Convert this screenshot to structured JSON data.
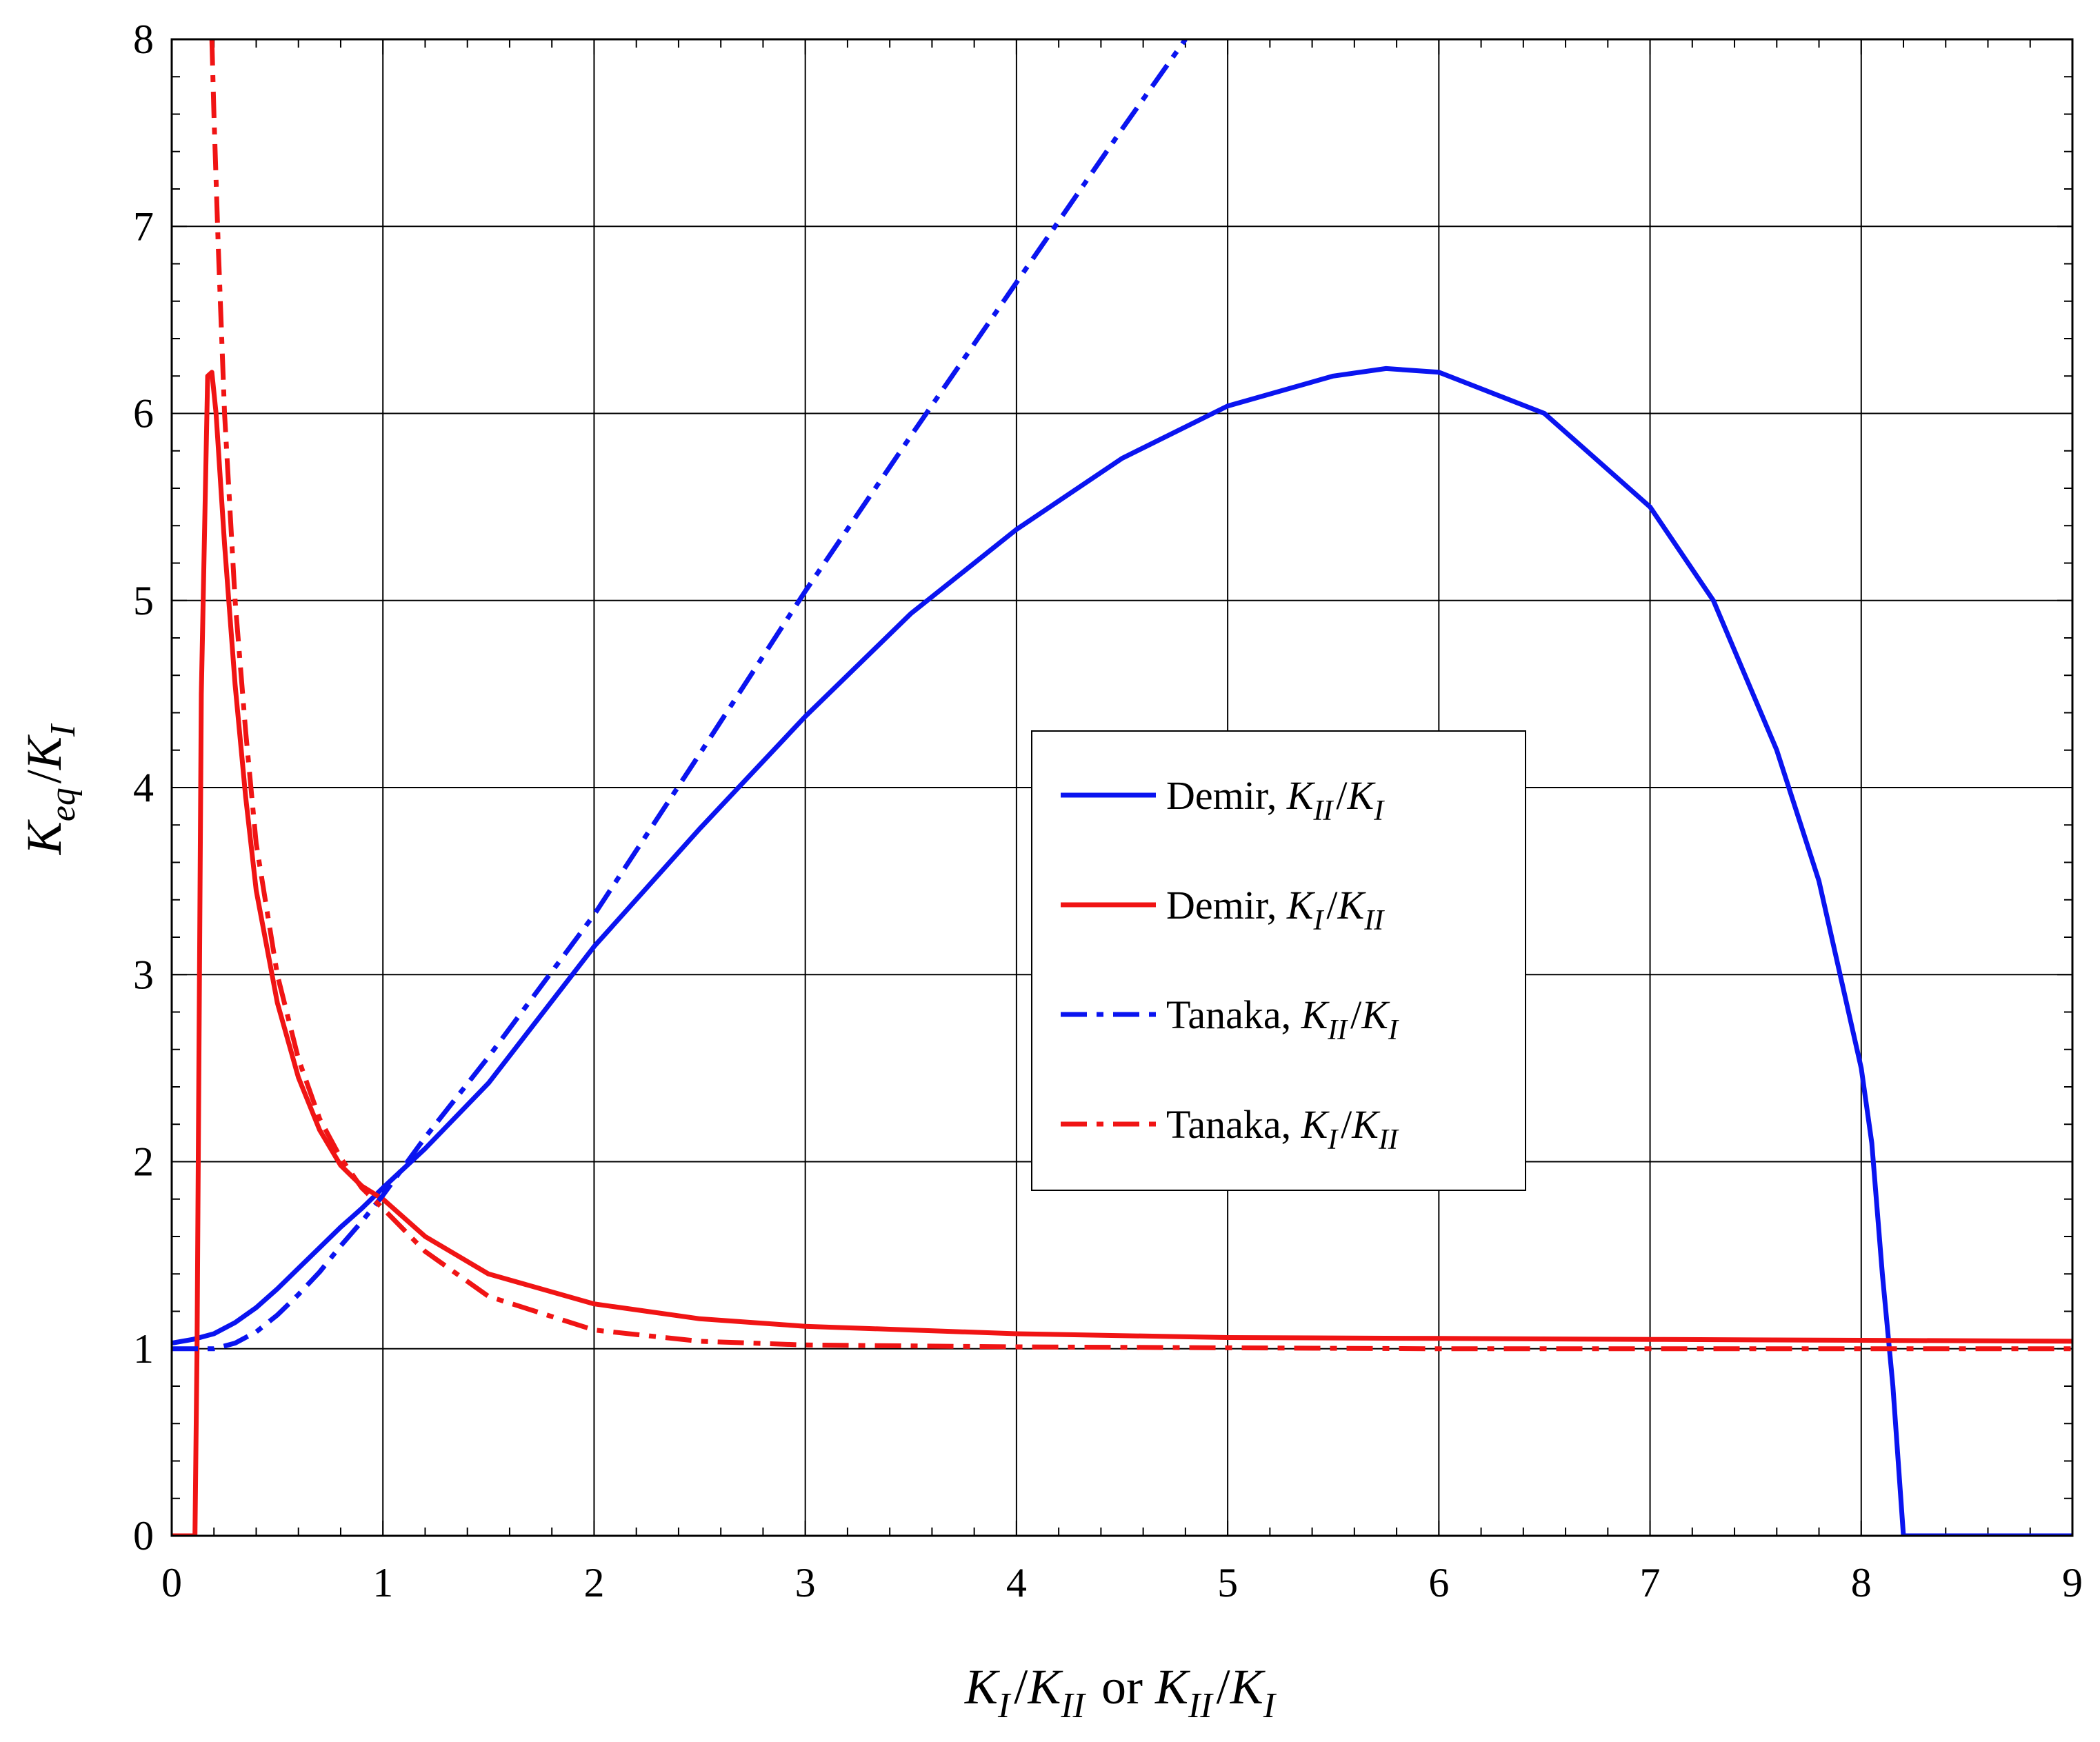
{
  "chart_data": {
    "type": "line",
    "title": "",
    "xlabel": {
      "parts": [
        {
          "base": "K",
          "sub": "I"
        },
        {
          "text": "/"
        },
        {
          "base": "K",
          "sub": "II"
        },
        {
          "text": " or "
        },
        {
          "base": "K",
          "sub": "II"
        },
        {
          "text": "/"
        },
        {
          "base": "K",
          "sub": "I"
        }
      ]
    },
    "ylabel": {
      "parts": [
        {
          "base": "K",
          "sub": "eq"
        },
        {
          "text": "/"
        },
        {
          "base": "K",
          "sub": "I"
        }
      ]
    },
    "xlim": [
      0,
      9
    ],
    "ylim": [
      0,
      8
    ],
    "xticks": [
      "0",
      "1",
      "2",
      "3",
      "4",
      "5",
      "6",
      "7",
      "8",
      "9"
    ],
    "yticks": [
      "0",
      "1",
      "2",
      "3",
      "4",
      "5",
      "6",
      "7",
      "8"
    ],
    "grid": true,
    "minor_ticks": true,
    "legend_position": "center-right",
    "series": [
      {
        "name": {
          "prefix": "Demir, ",
          "parts": [
            {
              "base": "K",
              "sub": "II"
            },
            {
              "text": "/"
            },
            {
              "base": "K",
              "sub": "I"
            }
          ]
        },
        "color": "#0a14f0",
        "style": "solid",
        "x": [
          0,
          0.1,
          0.2,
          0.3,
          0.4,
          0.5,
          0.6,
          0.7,
          0.8,
          0.9,
          1.0,
          1.2,
          1.5,
          2.0,
          2.5,
          3.0,
          3.5,
          4.0,
          4.5,
          5.0,
          5.5,
          5.75,
          6.0,
          6.5,
          7.0,
          7.3,
          7.6,
          7.8,
          8.0,
          8.05,
          8.1,
          8.15,
          8.2,
          8.3,
          9.0
        ],
        "y": [
          1.03,
          1.05,
          1.08,
          1.14,
          1.22,
          1.32,
          1.43,
          1.54,
          1.65,
          1.75,
          1.86,
          2.07,
          2.42,
          3.15,
          3.78,
          4.38,
          4.93,
          5.38,
          5.76,
          6.04,
          6.2,
          6.24,
          6.22,
          6.0,
          5.5,
          5.0,
          4.2,
          3.5,
          2.5,
          2.1,
          1.4,
          0.8,
          0,
          0,
          0
        ]
      },
      {
        "name": {
          "prefix": "Demir, ",
          "parts": [
            {
              "base": "K",
              "sub": "I"
            },
            {
              "text": "/"
            },
            {
              "base": "K",
              "sub": "II"
            }
          ]
        },
        "color": "#f01414",
        "style": "solid",
        "x": [
          0,
          0.11,
          0.12,
          0.14,
          0.17,
          0.19,
          0.21,
          0.25,
          0.3,
          0.35,
          0.4,
          0.5,
          0.6,
          0.7,
          0.8,
          0.9,
          1.0,
          1.2,
          1.5,
          2.0,
          2.5,
          3.0,
          4.0,
          5.0,
          6.0,
          7.0,
          8.0,
          9.0
        ],
        "y": [
          0,
          0,
          1.0,
          4.5,
          6.2,
          6.22,
          6.0,
          5.3,
          4.55,
          3.95,
          3.45,
          2.85,
          2.45,
          2.17,
          1.98,
          1.87,
          1.8,
          1.6,
          1.4,
          1.24,
          1.16,
          1.12,
          1.08,
          1.06,
          1.055,
          1.05,
          1.045,
          1.04
        ]
      },
      {
        "name": {
          "prefix": "Tanaka, ",
          "parts": [
            {
              "base": "K",
              "sub": "II"
            },
            {
              "text": "/"
            },
            {
              "base": "K",
              "sub": "I"
            }
          ]
        },
        "color": "#0a14f0",
        "style": "dashdot",
        "x": [
          0,
          0.1,
          0.2,
          0.3,
          0.4,
          0.5,
          0.6,
          0.7,
          0.8,
          0.9,
          1.0,
          1.2,
          1.5,
          2.0,
          2.5,
          3.0,
          3.5,
          4.0,
          4.5,
          4.8
        ],
        "y": [
          1.0,
          1.0,
          1.0,
          1.03,
          1.09,
          1.18,
          1.29,
          1.41,
          1.55,
          1.68,
          1.82,
          2.13,
          2.56,
          3.32,
          4.18,
          5.05,
          5.88,
          6.7,
          7.52,
          8.0
        ]
      },
      {
        "name": {
          "prefix": "Tanaka, ",
          "parts": [
            {
              "base": "K",
              "sub": "I"
            },
            {
              "text": "/"
            },
            {
              "base": "K",
              "sub": "II"
            }
          ]
        },
        "color": "#f01414",
        "style": "dashdot",
        "x": [
          0.19,
          0.2,
          0.22,
          0.25,
          0.3,
          0.35,
          0.4,
          0.5,
          0.6,
          0.7,
          0.8,
          0.9,
          1.0,
          1.2,
          1.5,
          2.0,
          2.5,
          3.0,
          4.0,
          5.0,
          6.0,
          7.0,
          8.0,
          9.0
        ],
        "y": [
          8.0,
          7.6,
          6.9,
          6.0,
          5.0,
          4.3,
          3.7,
          3.0,
          2.55,
          2.23,
          2.02,
          1.86,
          1.75,
          1.52,
          1.28,
          1.1,
          1.04,
          1.02,
          1.01,
          1.005,
          1.0,
          1.0,
          1.0,
          1.0
        ]
      }
    ]
  }
}
